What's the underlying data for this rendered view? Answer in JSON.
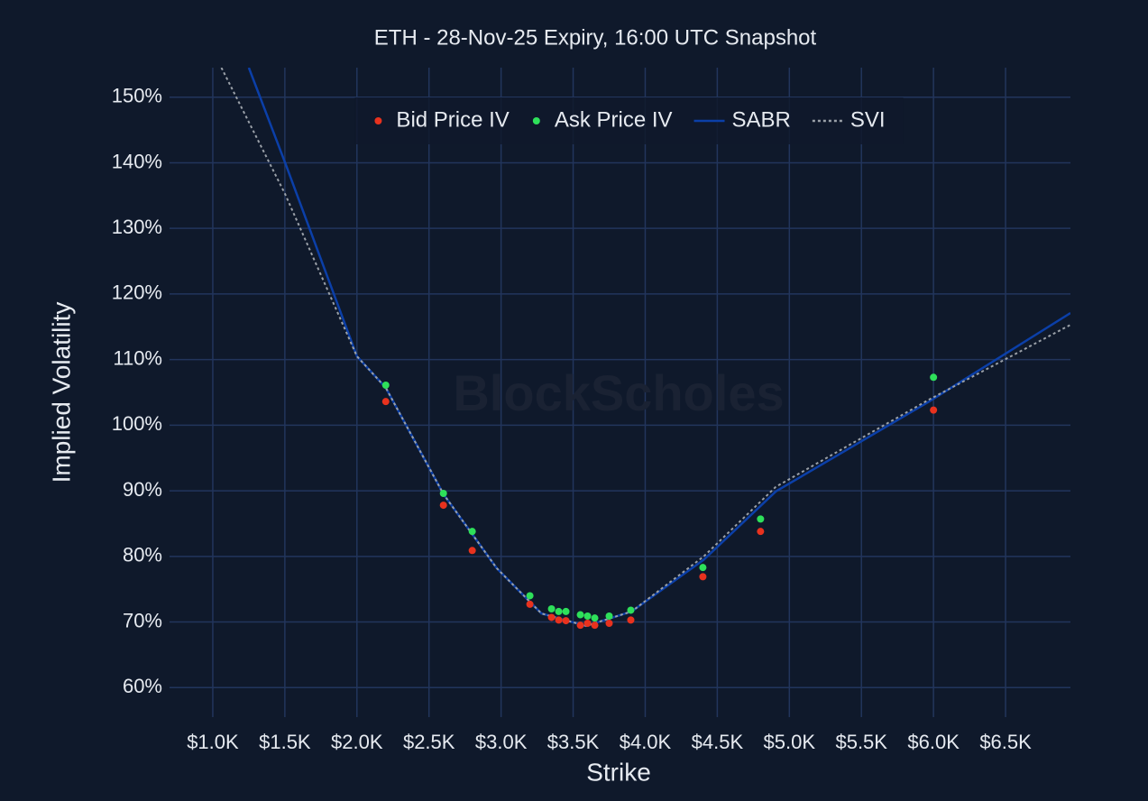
{
  "chart_data": {
    "type": "scatter",
    "title": "ETH - 28-Nov-25 Expiry, 16:00 UTC Snapshot",
    "x_label": "Strike",
    "y_label": "Implied Volatility",
    "watermark": "BlockScholes",
    "xlim": [
      700,
      6950
    ],
    "ylim": [
      55.5,
      154.5
    ],
    "xticks": [
      {
        "value": 1000,
        "label": "$1.0K"
      },
      {
        "value": 1500,
        "label": "$1.5K"
      },
      {
        "value": 2000,
        "label": "$2.0K"
      },
      {
        "value": 2500,
        "label": "$2.5K"
      },
      {
        "value": 3000,
        "label": "$3.0K"
      },
      {
        "value": 3500,
        "label": "$3.5K"
      },
      {
        "value": 4000,
        "label": "$4.0K"
      },
      {
        "value": 4500,
        "label": "$4.5K"
      },
      {
        "value": 5000,
        "label": "$5.0K"
      },
      {
        "value": 5500,
        "label": "$5.5K"
      },
      {
        "value": 6000,
        "label": "$6.0K"
      },
      {
        "value": 6500,
        "label": "$6.5K"
      }
    ],
    "yticks": [
      {
        "value": 60,
        "label": "60%"
      },
      {
        "value": 70,
        "label": "70%"
      },
      {
        "value": 80,
        "label": "80%"
      },
      {
        "value": 90,
        "label": "90%"
      },
      {
        "value": 100,
        "label": "100%"
      },
      {
        "value": 110,
        "label": "110%"
      },
      {
        "value": 120,
        "label": "120%"
      },
      {
        "value": 130,
        "label": "130%"
      },
      {
        "value": 140,
        "label": "140%"
      },
      {
        "value": 150,
        "label": "150%"
      }
    ],
    "grid": true,
    "legend": "top",
    "series": [
      {
        "name": "Bid Price IV",
        "color": "#e8321e",
        "mode": "markers",
        "x": [
          2200,
          2600,
          2800,
          3200,
          3350,
          3400,
          3450,
          3550,
          3600,
          3650,
          3750,
          3900,
          4400,
          4800,
          6000
        ],
        "values": [
          103.6,
          87.8,
          80.9,
          72.7,
          70.7,
          70.3,
          70.2,
          69.5,
          69.8,
          69.5,
          69.8,
          70.3,
          76.9,
          83.8,
          102.3
        ]
      },
      {
        "name": "Ask Price IV",
        "color": "#2ee05a",
        "mode": "markers",
        "x": [
          2200,
          2600,
          2800,
          3200,
          3350,
          3400,
          3450,
          3550,
          3600,
          3650,
          3750,
          3900,
          4400,
          4800,
          6000
        ],
        "values": [
          106.1,
          89.6,
          83.8,
          74.0,
          72.0,
          71.6,
          71.6,
          71.1,
          70.9,
          70.6,
          70.9,
          71.8,
          78.3,
          85.7,
          107.3
        ]
      },
      {
        "name": "SABR",
        "color": "#0b3fa8",
        "mode": "lines",
        "dash": "solid",
        "x": [
          1250,
          1500,
          2000,
          2200,
          2600,
          2970,
          3280,
          3590,
          3906,
          4406,
          4906,
          5969,
          6950
        ],
        "values": [
          154.5,
          140.1,
          110.5,
          105.7,
          89.5,
          78.2,
          71.3,
          69.4,
          71.6,
          79.5,
          89.9,
          103.6,
          117.1
        ]
      },
      {
        "name": "SVI",
        "color": "#9aa0a8",
        "mode": "lines",
        "dash": "dot",
        "x": [
          1060,
          1500,
          2000,
          2200,
          2600,
          2970,
          3280,
          3590,
          3906,
          4406,
          4906,
          5969,
          6950
        ],
        "values": [
          154.5,
          135.3,
          110.5,
          105.7,
          89.5,
          78.2,
          71.3,
          69.4,
          71.6,
          80.0,
          90.6,
          103.9,
          115.3
        ]
      }
    ]
  }
}
